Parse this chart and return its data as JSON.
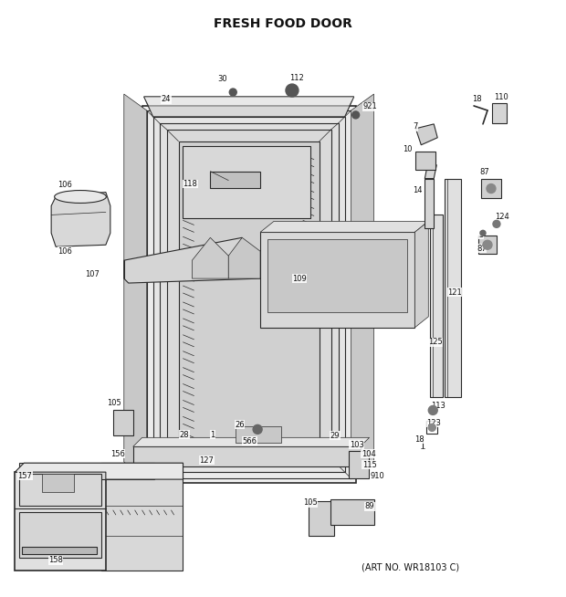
{
  "title": "FRESH FOOD DOOR",
  "subtitle": "(ART NO. WR18103 C)",
  "bg_color": "#ffffff",
  "title_fontsize": 10,
  "subtitle_fontsize": 7,
  "fig_width": 6.2,
  "fig_height": 6.54,
  "dpi": 100,
  "line_color": "#2a2a2a",
  "label_fontsize": 6.0
}
